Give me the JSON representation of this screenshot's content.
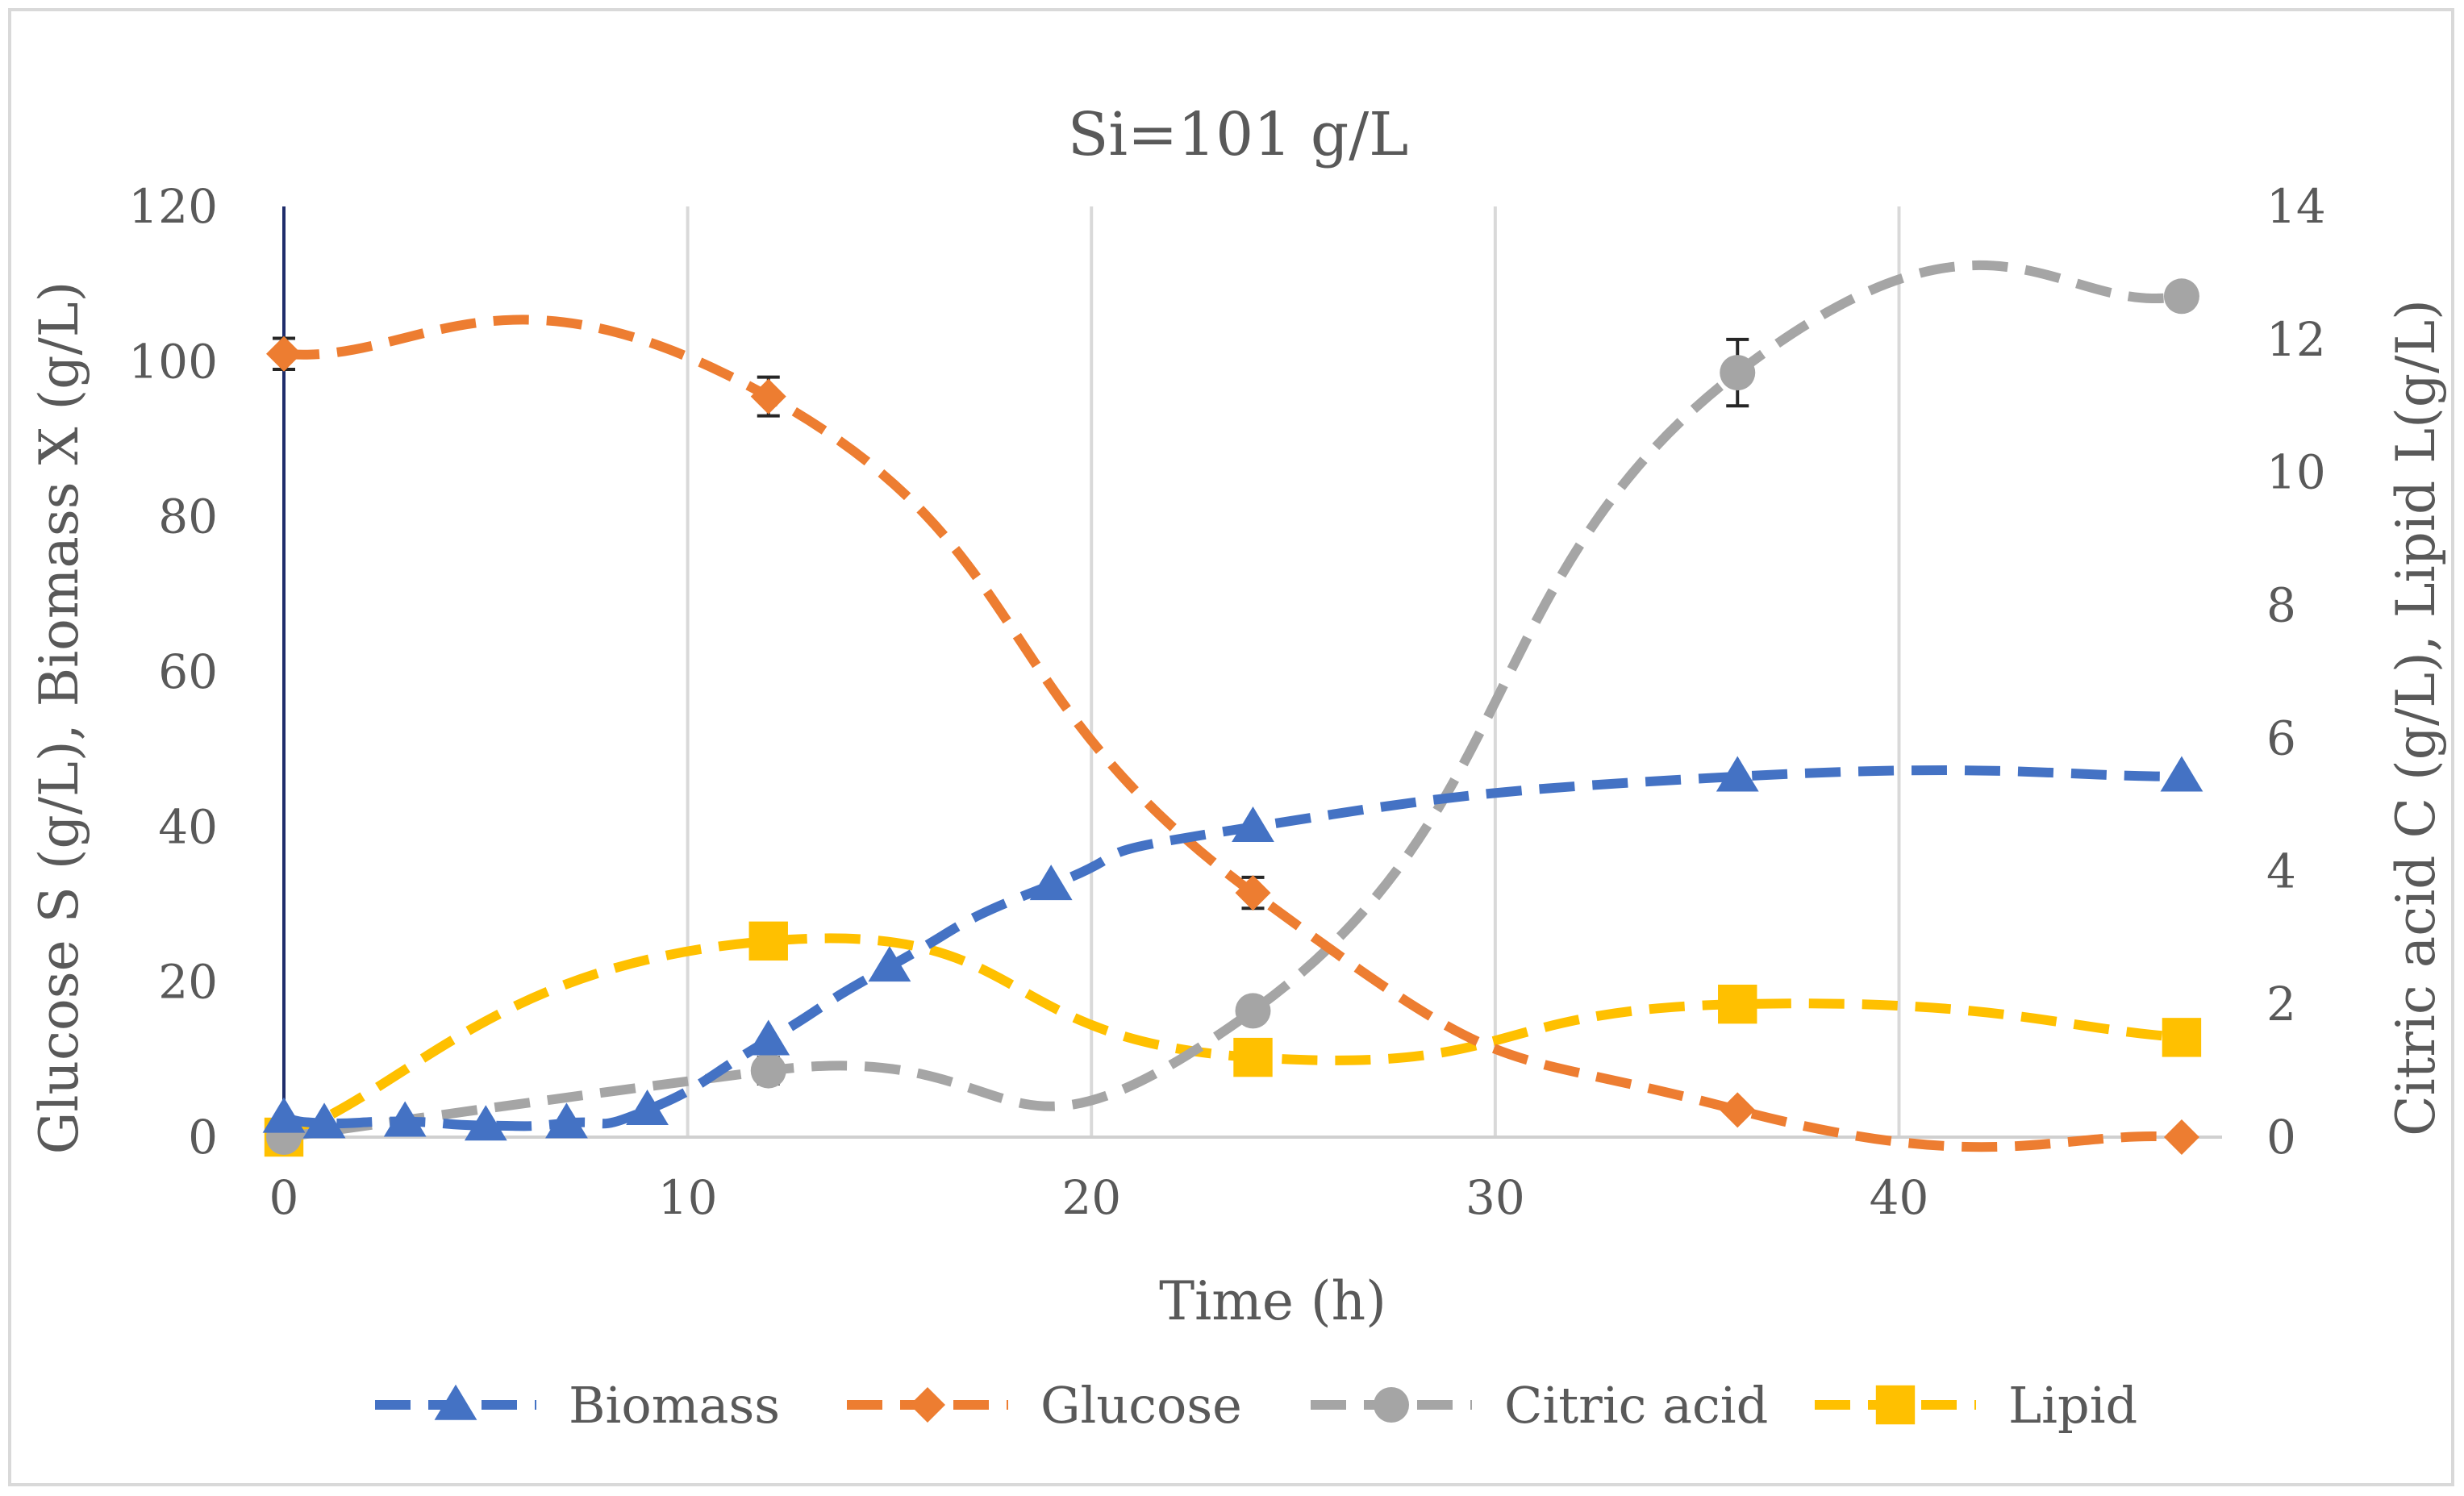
{
  "chart_data": {
    "type": "line",
    "title": "Si=101 g/L",
    "xlabel": "Time (h)",
    "ylabel": "Glucose S (g/L), Biomass X (g/L)",
    "y2label": "Citric acid C (g/L), Lipid L(g/L)",
    "xlim": [
      0,
      48
    ],
    "ylim": [
      0,
      120
    ],
    "y2lim": [
      0,
      14
    ],
    "x_ticks": [
      0,
      10,
      20,
      30,
      40
    ],
    "y_ticks": [
      0,
      20,
      40,
      60,
      80,
      100,
      120
    ],
    "y2_ticks": [
      0,
      2,
      4,
      6,
      8,
      10,
      12,
      14
    ],
    "grid": "vertical",
    "legend_position": "bottom",
    "series": [
      {
        "name": "Biomass",
        "axis": "left",
        "marker": "triangle",
        "color": "#4472c4",
        "points": [
          [
            0,
            2.5
          ],
          [
            1,
            1.8
          ],
          [
            3,
            2.0
          ],
          [
            5,
            1.5
          ],
          [
            7,
            1.8
          ],
          [
            9,
            3.5
          ],
          [
            12,
            12.5
          ],
          [
            15,
            22
          ],
          [
            19,
            32.5
          ],
          [
            24,
            40
          ],
          [
            36,
            46.5
          ],
          [
            47,
            46.5
          ]
        ]
      },
      {
        "name": "Glucose",
        "axis": "left",
        "marker": "diamond",
        "color": "#ed7d31",
        "points": [
          [
            0,
            101
          ],
          [
            12,
            95.5
          ],
          [
            24,
            31.5
          ],
          [
            36,
            3.5
          ],
          [
            47,
            0
          ]
        ],
        "error_bars": [
          [
            0,
            2
          ],
          [
            12,
            2.5
          ],
          [
            24,
            2
          ],
          [
            36,
            0
          ],
          [
            47,
            0
          ]
        ]
      },
      {
        "name": "Citric acid",
        "axis": "right",
        "marker": "circle",
        "color": "#a5a5a5",
        "points": [
          [
            0,
            0
          ],
          [
            12,
            1.0
          ],
          [
            24,
            1.9
          ],
          [
            36,
            11.5
          ],
          [
            47,
            12.65
          ]
        ],
        "error_bars": [
          [
            0,
            0
          ],
          [
            12,
            0.2
          ],
          [
            24,
            0
          ],
          [
            36,
            0.5
          ],
          [
            47,
            0
          ]
        ]
      },
      {
        "name": "Lipid",
        "axis": "right",
        "marker": "square",
        "color": "#ffc000",
        "points": [
          [
            0,
            0
          ],
          [
            12,
            2.95
          ],
          [
            24,
            1.2
          ],
          [
            36,
            2.0
          ],
          [
            47,
            1.5
          ]
        ]
      }
    ]
  }
}
